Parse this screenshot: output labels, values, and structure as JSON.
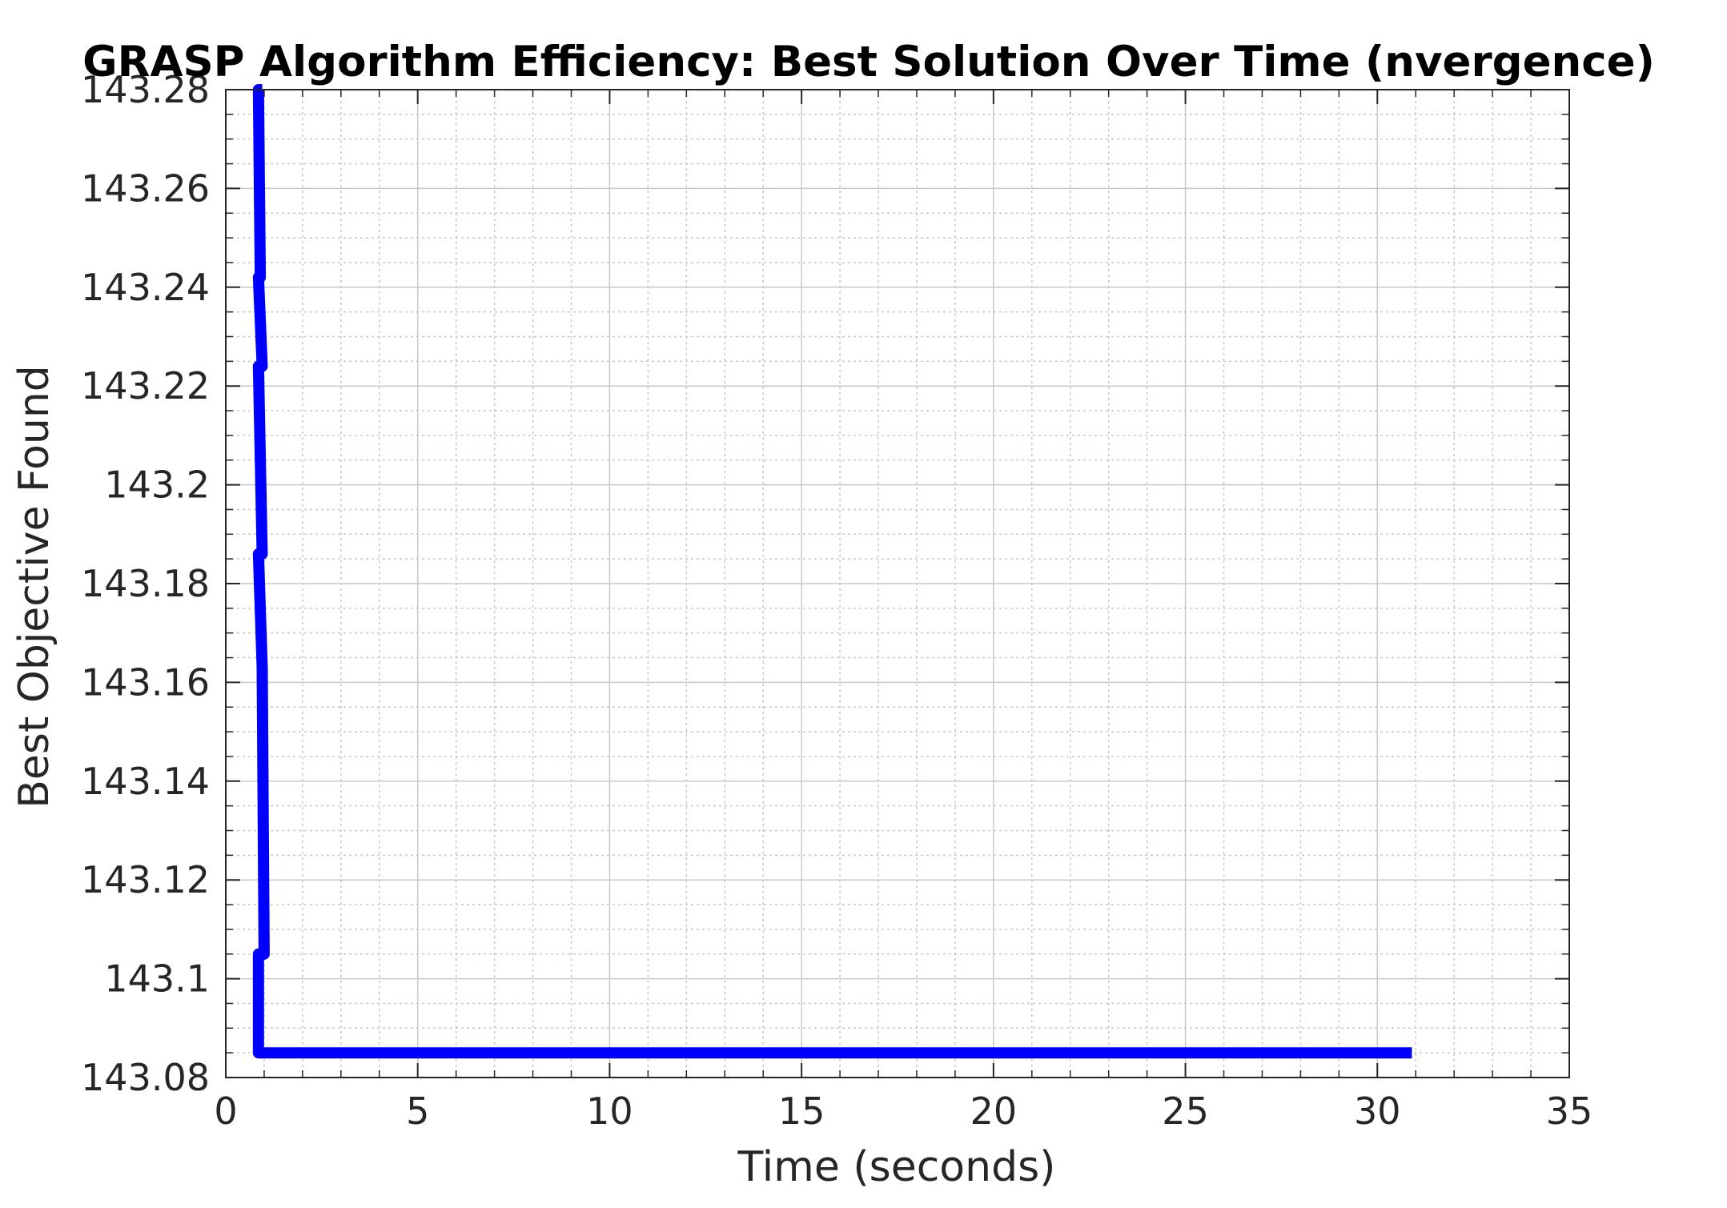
{
  "chart_data": {
    "type": "line",
    "title": "GRASP Algorithm Efficiency: Best Solution Over Time (nvergence)",
    "xlabel": "Time (seconds)",
    "ylabel": "Best Objective Found",
    "xlim": [
      0,
      35
    ],
    "ylim": [
      143.08,
      143.28
    ],
    "x_ticks": [
      0,
      5,
      10,
      15,
      20,
      25,
      30,
      35
    ],
    "x_tick_labels": [
      "0",
      "5",
      "10",
      "15",
      "20",
      "25",
      "30",
      "35"
    ],
    "y_ticks": [
      143.08,
      143.1,
      143.12,
      143.14,
      143.16,
      143.18,
      143.2,
      143.22,
      143.24,
      143.26,
      143.28
    ],
    "y_tick_labels": [
      "143.08",
      "143.1",
      "143.12",
      "143.14",
      "143.16",
      "143.18",
      "143.2",
      "143.22",
      "143.24",
      "143.26",
      "143.28"
    ],
    "x_minor_step": 1,
    "y_minor_step": 0.005,
    "grid": true,
    "minor_grid": true,
    "legend": "none",
    "colors": {
      "line": "#0000ff",
      "axes": "#262626",
      "major_grid": "#c8c8c8",
      "minor_grid": "#c8c8c8"
    },
    "series": [
      {
        "x": [
          0.95,
          0.85,
          0.9,
          0.85,
          0.95,
          0.85,
          0.95,
          0.85,
          0.95,
          1.0,
          0.85,
          0.85,
          30.9
        ],
        "y": [
          143.28,
          143.28,
          143.242,
          143.242,
          143.224,
          143.224,
          143.186,
          143.186,
          143.163,
          143.105,
          143.105,
          143.085,
          143.085
        ]
      }
    ]
  }
}
